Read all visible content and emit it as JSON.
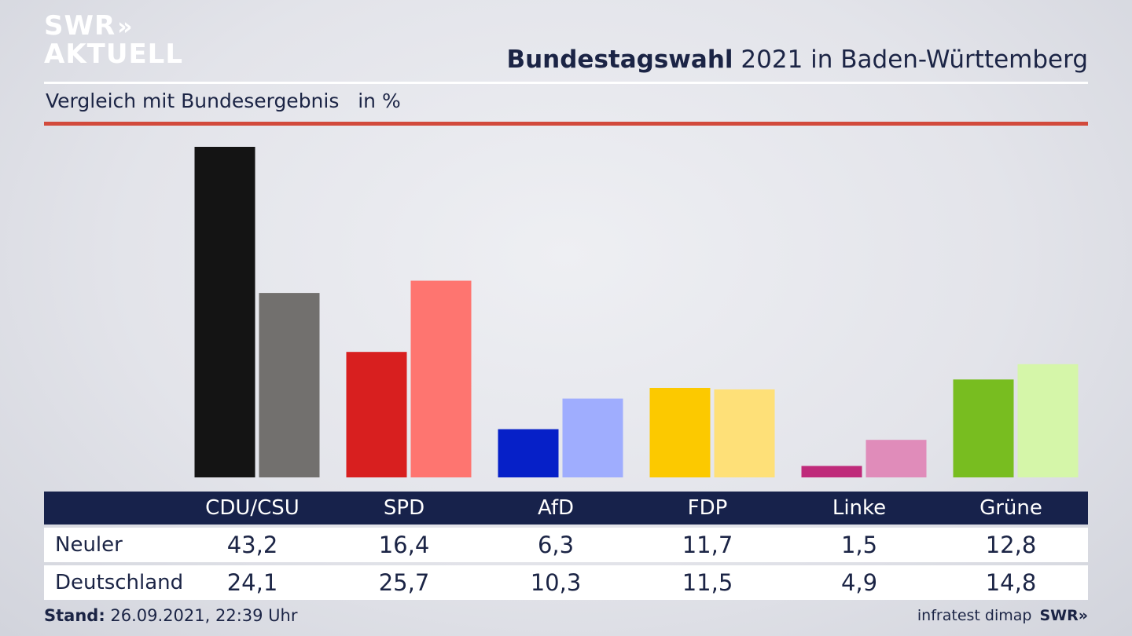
{
  "brand": {
    "logo_line1": "SWR",
    "logo_line2": "AKTUELL",
    "logo_chevrons": "»"
  },
  "header": {
    "title_bold": "Bundestagswahl",
    "title_rest": " 2021 in Baden-Württemberg",
    "subtitle": "Vergleich mit Bundesergebnis   in %"
  },
  "chart_data": {
    "type": "bar",
    "categories": [
      "CDU/CSU",
      "SPD",
      "AfD",
      "FDP",
      "Linke",
      "Grüne"
    ],
    "series": [
      {
        "name": "Neuler",
        "values": [
          43.2,
          16.4,
          6.3,
          11.7,
          1.5,
          12.8
        ],
        "colors": [
          "#141414",
          "#d81f1f",
          "#0620c8",
          "#fcc900",
          "#bf2a7a",
          "#78bd20"
        ]
      },
      {
        "name": "Deutschland",
        "values": [
          24.1,
          25.7,
          10.3,
          11.5,
          4.9,
          14.8
        ],
        "colors": [
          "#72706e",
          "#fe7570",
          "#9fadfe",
          "#fee078",
          "#e08cba",
          "#d5f6a9"
        ]
      }
    ],
    "ylim": [
      0,
      43.2
    ],
    "grid": false,
    "legend": "table-below"
  },
  "table": {
    "rows": [
      {
        "label": "Neuler",
        "values": [
          "43,2",
          "16,4",
          "6,3",
          "11,7",
          "1,5",
          "12,8"
        ]
      },
      {
        "label": "Deutschland",
        "values": [
          "24,1",
          "25,7",
          "10,3",
          "11,5",
          "4,9",
          "14,8"
        ]
      }
    ]
  },
  "footer": {
    "stand_label": "Stand:",
    "stand_value": " 26.09.2021, 22:39 Uhr",
    "source": "infratest dimap",
    "brand": "SWR»"
  }
}
